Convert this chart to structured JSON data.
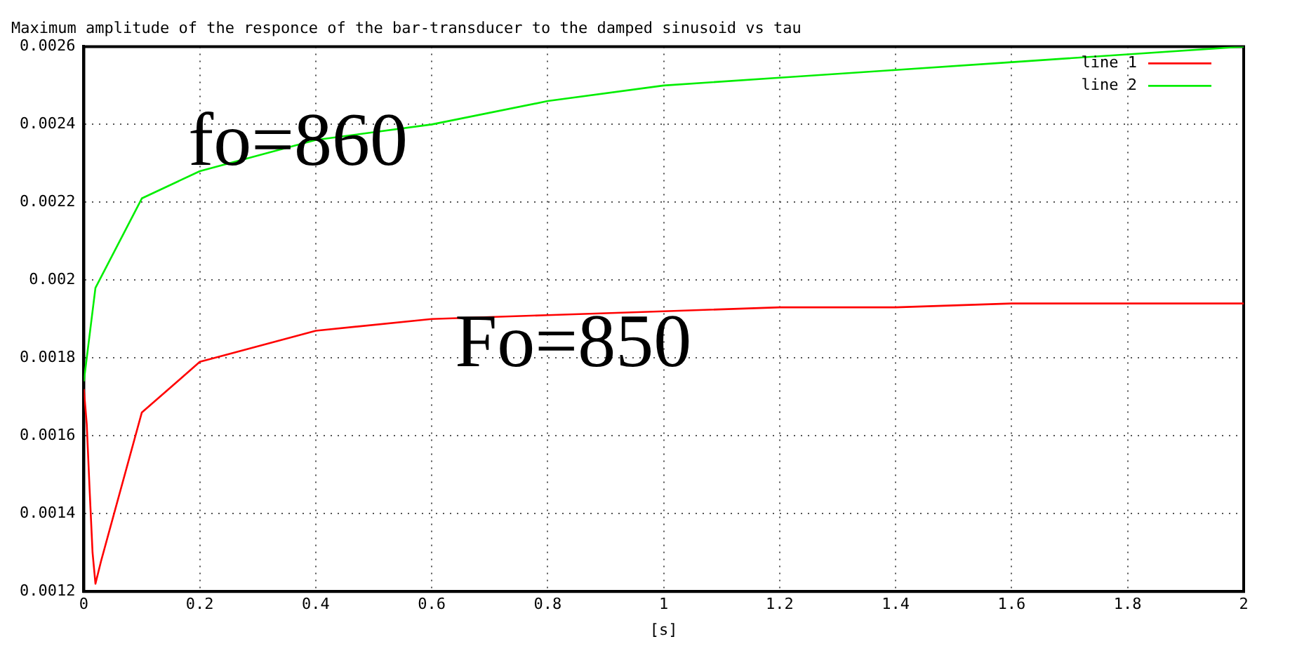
{
  "chart_data": {
    "type": "line",
    "title": "Maximum amplitude of the responce of the bar-transducer to the damped sinusoid vs tau",
    "xlabel": "[s]",
    "xlim": [
      0,
      2
    ],
    "xticks": [
      0,
      0.2,
      0.4,
      0.6,
      0.8,
      1,
      1.2,
      1.4,
      1.6,
      1.8,
      2
    ],
    "ylim": [
      0.0012,
      0.0026
    ],
    "yticks": [
      0.0012,
      0.0014,
      0.0016,
      0.0018,
      0.002,
      0.0022,
      0.0024,
      0.0026
    ],
    "grid": true,
    "legend": "top right",
    "marker": "none",
    "line_style": "solid",
    "series": [
      {
        "name": "line 1",
        "color": "#ff0000",
        "x": [
          0,
          0.005,
          0.01,
          0.015,
          0.02,
          0.03,
          0.1,
          0.2,
          0.4,
          0.6,
          0.8,
          1,
          1.2,
          1.4,
          1.6,
          1.8,
          2
        ],
        "values": [
          0.00172,
          0.00163,
          0.00146,
          0.0013,
          0.00122,
          0.00128,
          0.00166,
          0.00179,
          0.00187,
          0.0019,
          0.00191,
          0.00192,
          0.00193,
          0.00193,
          0.00194,
          0.00194,
          0.00194
        ]
      },
      {
        "name": "line 2",
        "color": "#00ee00",
        "x": [
          0,
          0.02,
          0.1,
          0.2,
          0.4,
          0.6,
          0.8,
          1,
          1.2,
          1.4,
          1.6,
          1.8,
          2
        ],
        "values": [
          0.00174,
          0.00198,
          0.00221,
          0.00228,
          0.00236,
          0.0024,
          0.00246,
          0.0025,
          0.00252,
          0.00254,
          0.00256,
          0.00258,
          0.0026
        ]
      }
    ],
    "annotations": [
      "fo=860",
      "Fo=850"
    ]
  }
}
